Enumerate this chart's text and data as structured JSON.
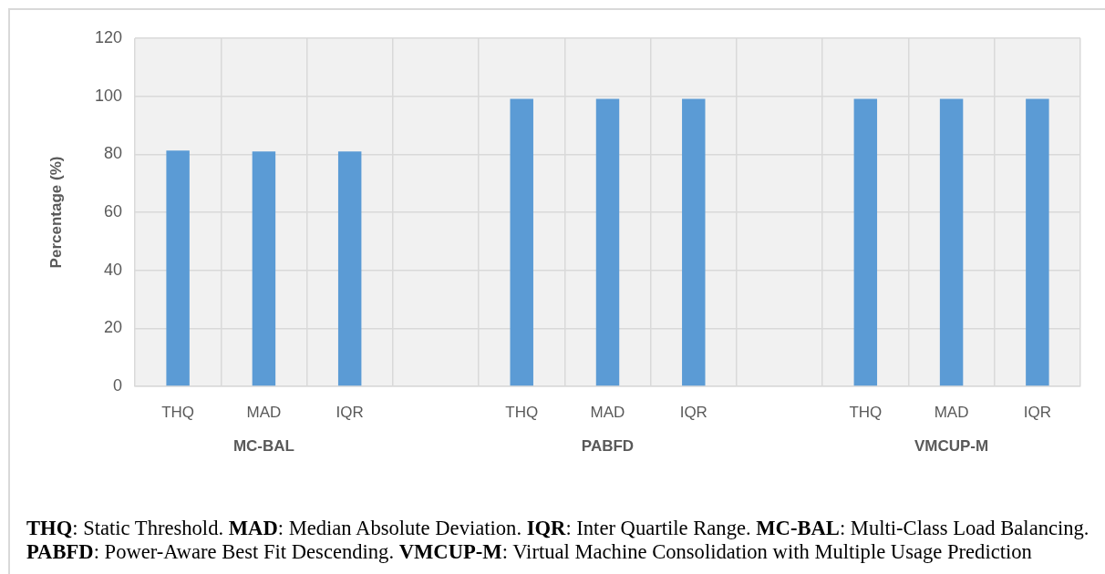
{
  "chart_data": {
    "type": "bar",
    "ylabel": "Percentage (%)",
    "categories": [
      "THQ",
      "MAD",
      "IQR",
      null,
      "THQ",
      "MAD",
      "IQR",
      null,
      "THQ",
      "MAD",
      "IQR"
    ],
    "values": [
      81.3,
      81.0,
      81.0,
      null,
      99.1,
      99.1,
      99.1,
      null,
      99.1,
      99.1,
      99.1
    ],
    "color": "#5b9bd5",
    "ylim": [
      0,
      120
    ],
    "yticks": [
      0,
      20,
      40,
      60,
      80,
      100,
      120
    ],
    "grid": true,
    "annotations": [
      "MC-BAL",
      "PABFD",
      "VMCUP-M",
      "THQ: Static Threshold. MAD: Median Absolute Deviation. IQR: Inter Quartile Range. MC-BAL: Multi-Class Load Balancing.",
      "PABFD: Power-Aware Best Fit Descending. VMCUP-M: Virtual Machine Consolidation with Multiple Usage Prediction"
    ]
  }
}
